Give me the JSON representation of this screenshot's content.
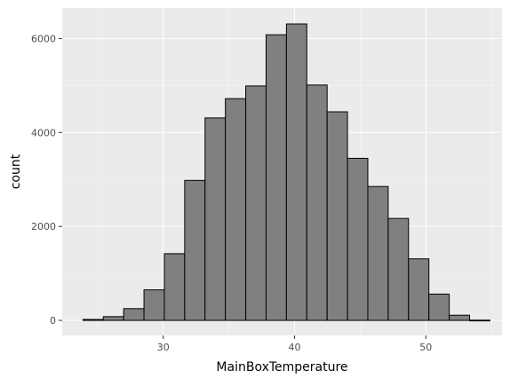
{
  "chart_data": {
    "type": "bar",
    "subtype": "histogram",
    "xlabel": "MainBoxTemperature",
    "ylabel": "count",
    "xlim": [
      22.3,
      55.8
    ],
    "ylim": [
      -320,
      6650
    ],
    "xticks": [
      30,
      40,
      50
    ],
    "yticks": [
      0,
      2000,
      4000,
      6000
    ],
    "bin_width": 1.55,
    "bins": [
      {
        "start": 23.88,
        "end": 25.43,
        "count": 20
      },
      {
        "start": 25.43,
        "end": 26.98,
        "count": 80
      },
      {
        "start": 26.98,
        "end": 28.53,
        "count": 250
      },
      {
        "start": 28.53,
        "end": 30.08,
        "count": 650
      },
      {
        "start": 30.08,
        "end": 31.63,
        "count": 1420
      },
      {
        "start": 31.63,
        "end": 33.18,
        "count": 2980
      },
      {
        "start": 33.18,
        "end": 34.73,
        "count": 4310
      },
      {
        "start": 34.73,
        "end": 36.28,
        "count": 4720
      },
      {
        "start": 36.28,
        "end": 37.83,
        "count": 4990
      },
      {
        "start": 37.83,
        "end": 39.38,
        "count": 6080
      },
      {
        "start": 39.38,
        "end": 40.93,
        "count": 6310
      },
      {
        "start": 40.93,
        "end": 42.48,
        "count": 5010
      },
      {
        "start": 42.48,
        "end": 44.03,
        "count": 4440
      },
      {
        "start": 44.03,
        "end": 45.58,
        "count": 3450
      },
      {
        "start": 45.58,
        "end": 47.13,
        "count": 2850
      },
      {
        "start": 47.13,
        "end": 48.68,
        "count": 2170
      },
      {
        "start": 48.68,
        "end": 50.23,
        "count": 1310
      },
      {
        "start": 50.23,
        "end": 51.78,
        "count": 560
      },
      {
        "start": 51.78,
        "end": 53.33,
        "count": 110
      },
      {
        "start": 53.33,
        "end": 54.88,
        "count": 5
      }
    ],
    "grid": true,
    "colors": {
      "panel_background": "#ebebeb",
      "bar_fill": "#808080",
      "bar_outline": "#000000",
      "grid_major": "#ffffff",
      "grid_minor": "#f5f5f5",
      "tick_text": "#4d4d4d",
      "title_text": "#000000"
    }
  }
}
